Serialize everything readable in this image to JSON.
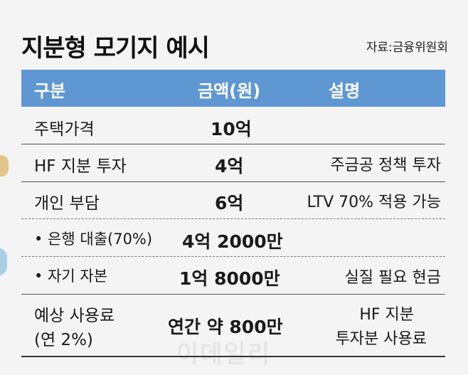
{
  "title": "지분형 모기지 예시",
  "source": "자료:금융위원회",
  "header": {
    "col1": "구분",
    "col2": "금액(원)",
    "col3": "설명"
  },
  "rows": [
    {
      "label": "주택가격",
      "amount": "10억",
      "desc": ""
    },
    {
      "label": "HF 지분 투자",
      "amount": "4억",
      "desc": "주금공 정책 투자"
    },
    {
      "label": "개인 부담",
      "amount": "6억",
      "desc": "LTV 70% 적용 가능"
    },
    {
      "label": "• 은행 대출(70%)",
      "amount": "4억 2000만",
      "desc": ""
    },
    {
      "label": "• 자기 자본",
      "amount": "1억 8000만",
      "desc": "실질 필요 현금"
    },
    {
      "label_line1": "예상 사용료",
      "label_line2": "(연 2%)",
      "amount": "연간 약 800만",
      "desc_line1": "HF 지분",
      "desc_line2": "투자분 사용료"
    }
  ],
  "watermark": "이데일리"
}
